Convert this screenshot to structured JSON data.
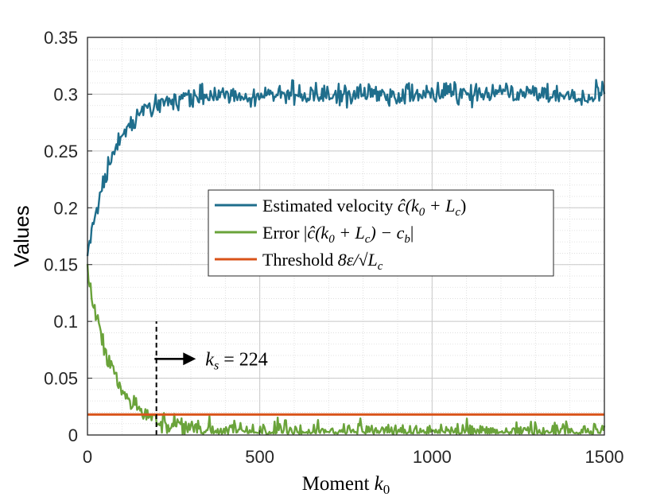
{
  "chart_data": {
    "type": "line",
    "xlabel": "Moment k0",
    "xlabel_parts": {
      "text": "Moment ",
      "var": "k",
      "sub": "0"
    },
    "ylabel": "Values",
    "xlim": [
      0,
      1500
    ],
    "ylim": [
      0,
      0.35
    ],
    "x_ticks": [
      0,
      500,
      1000,
      1500
    ],
    "x_tick_labels": [
      "0",
      "500",
      "1000",
      "1500"
    ],
    "y_ticks": [
      0,
      0.05,
      0.1,
      0.15,
      0.2,
      0.25,
      0.3,
      0.35
    ],
    "y_tick_labels": [
      "0",
      "0.05",
      "0.1",
      "0.15",
      "0.2",
      "0.25",
      "0.3",
      "0.35"
    ],
    "grid": true,
    "minor_grid": true,
    "legend_position": "center-right",
    "series": [
      {
        "name": "Estimated velocity ĉ(k0 + Lc)",
        "color": "#1f6e8c",
        "model": {
          "kind": "rise",
          "start": 0.155,
          "end": 0.3,
          "tau": 75,
          "noise": 0.0045,
          "step": 3
        }
      },
      {
        "name": "Error |ĉ(k0 + Lc) − cb|",
        "color": "#6aa33a",
        "model": {
          "kind": "decay",
          "start": 0.145,
          "end": 0.003,
          "tau": 75,
          "noise": 0.0045,
          "step": 3
        }
      },
      {
        "name": "Threshold 8ε/√Lc",
        "color": "#d95319",
        "model": {
          "kind": "constant",
          "value": 0.018
        }
      }
    ],
    "vline": {
      "x": 200,
      "y_from": 0,
      "y_to": 0.1,
      "style": "dashed",
      "color": "#000000"
    },
    "annotation": {
      "text": "ks = 224",
      "var": "k",
      "sub": "s",
      "value": "224",
      "arrow": "right",
      "anchor_x": 213,
      "anchor_y": 0.067
    }
  },
  "legend": [
    {
      "prefix": "Estimated velocity ",
      "math": "ĉ(k",
      "sub1": "0",
      "mid": " + L",
      "sub2": "c",
      "suffix": ")"
    },
    {
      "prefix": "Error |",
      "math": "ĉ(k",
      "sub1": "0",
      "mid": " + L",
      "sub2": "c",
      "suffix": ") − c",
      "sub3": "b",
      "end": "|"
    },
    {
      "prefix": "Threshold ",
      "math": "8ε/√L",
      "sub1": "c"
    }
  ]
}
